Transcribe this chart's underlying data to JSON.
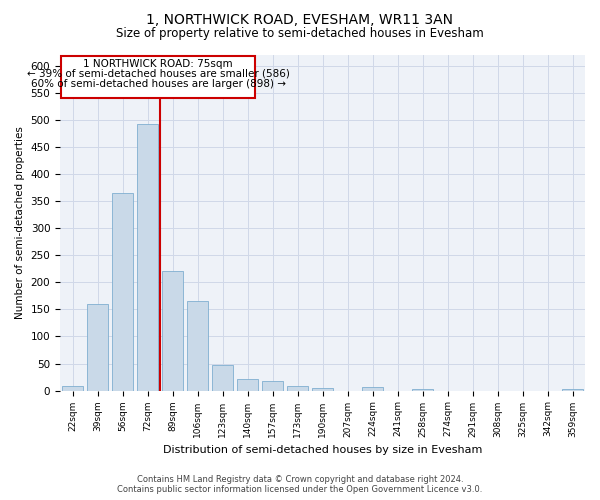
{
  "title": "1, NORTHWICK ROAD, EVESHAM, WR11 3AN",
  "subtitle": "Size of property relative to semi-detached houses in Evesham",
  "xlabel": "Distribution of semi-detached houses by size in Evesham",
  "ylabel": "Number of semi-detached properties",
  "footer_line1": "Contains HM Land Registry data © Crown copyright and database right 2024.",
  "footer_line2": "Contains public sector information licensed under the Open Government Licence v3.0.",
  "annotation_title": "1 NORTHWICK ROAD: 75sqm",
  "annotation_line1": "← 39% of semi-detached houses are smaller (586)",
  "annotation_line2": "60% of semi-detached houses are larger (898) →",
  "bar_color": "#c9d9e8",
  "bar_edge_color": "#7fafd0",
  "redline_color": "#cc0000",
  "grid_color": "#d0d8e8",
  "background_color": "#eef2f8",
  "categories": [
    "22sqm",
    "39sqm",
    "56sqm",
    "72sqm",
    "89sqm",
    "106sqm",
    "123sqm",
    "140sqm",
    "157sqm",
    "173sqm",
    "190sqm",
    "207sqm",
    "224sqm",
    "241sqm",
    "258sqm",
    "274sqm",
    "291sqm",
    "308sqm",
    "325sqm",
    "342sqm",
    "359sqm"
  ],
  "values": [
    8,
    160,
    365,
    492,
    220,
    165,
    48,
    22,
    18,
    8,
    5,
    0,
    6,
    0,
    3,
    0,
    0,
    0,
    0,
    0,
    3
  ],
  "ylim": [
    0,
    620
  ],
  "yticks": [
    0,
    50,
    100,
    150,
    200,
    250,
    300,
    350,
    400,
    450,
    500,
    550,
    600
  ],
  "red_line_x": 3.5
}
